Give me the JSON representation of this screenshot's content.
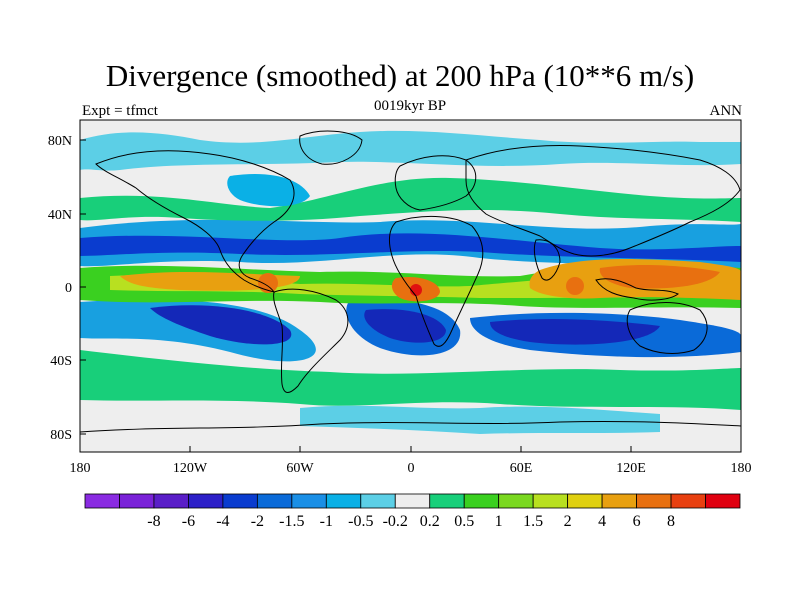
{
  "title": "Divergence (smoothed) at 200 hPa (10**6 m/s)",
  "left_label": "Expt = tfmct",
  "center_label": "0019kyr BP",
  "right_label": "ANN",
  "lat_ticks": [
    "80N",
    "40N",
    "0",
    "40S",
    "80S"
  ],
  "lon_ticks": [
    "180",
    "120W",
    "60W",
    "0",
    "60E",
    "120E",
    "180"
  ],
  "colorbar": {
    "colors": [
      "#8a2be2",
      "#7a22d8",
      "#5a1ec8",
      "#2d20c8",
      "#0a3ccf",
      "#0a6ad8",
      "#1a8fe6",
      "#0ab0e6",
      "#5ccfe6",
      "#eeeeee",
      "#18cf7a",
      "#3ad020",
      "#7ad820",
      "#b8e020",
      "#e0d010",
      "#e8a010",
      "#e87010",
      "#e84010",
      "#e00010"
    ],
    "labels": [
      "-8",
      "-6",
      "-4",
      "-2",
      "-1.5",
      "-1",
      "-0.5",
      "-0.2",
      "0.2",
      "0.5",
      "1",
      "1.5",
      "2",
      "4",
      "6",
      "8"
    ]
  }
}
